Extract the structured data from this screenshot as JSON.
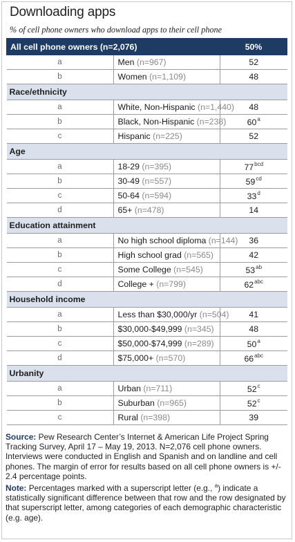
{
  "title": "Downloading apps",
  "subtitle": "% of cell phone owners who download apps to their cell phone",
  "header": {
    "label": "All cell phone owners (n=2,076)",
    "value": "50%"
  },
  "sections": [
    {
      "heading": "",
      "rows": [
        {
          "letter": "a",
          "label": "Men",
          "n": "(n=967)",
          "value": "52",
          "sup": ""
        },
        {
          "letter": "b",
          "label": "Women",
          "n": "(n=1,109)",
          "value": "48",
          "sup": ""
        }
      ]
    },
    {
      "heading": "Race/ethnicity",
      "rows": [
        {
          "letter": "a",
          "label": "White, Non-Hispanic",
          "n": "(n=1,440)",
          "value": "48",
          "sup": ""
        },
        {
          "letter": "b",
          "label": "Black, Non-Hispanic",
          "n": "(n=238)",
          "value": "60",
          "sup": "a"
        },
        {
          "letter": "c",
          "label": "Hispanic",
          "n": "(n=225)",
          "value": "52",
          "sup": ""
        }
      ]
    },
    {
      "heading": "Age",
      "rows": [
        {
          "letter": "a",
          "label": "18-29",
          "n": "(n=395)",
          "value": "77",
          "sup": "bcd"
        },
        {
          "letter": "b",
          "label": "30-49",
          "n": "(n=557)",
          "value": "59",
          "sup": "cd"
        },
        {
          "letter": "c",
          "label": "50-64",
          "n": "(n=594)",
          "value": "33",
          "sup": "d"
        },
        {
          "letter": "d",
          "label": "65+",
          "n": "(n=478)",
          "value": "14",
          "sup": ""
        }
      ]
    },
    {
      "heading": "Education attainment",
      "rows": [
        {
          "letter": "a",
          "label": "No high school diploma",
          "n": "(n=144)",
          "value": "36",
          "sup": ""
        },
        {
          "letter": "b",
          "label": "High school grad",
          "n": "(n=565)",
          "value": "42",
          "sup": ""
        },
        {
          "letter": "c",
          "label": "Some College",
          "n": "(n=545)",
          "value": "53",
          "sup": "ab"
        },
        {
          "letter": "d",
          "label": "College +",
          "n": "(n=799)",
          "value": "62",
          "sup": "abc"
        }
      ]
    },
    {
      "heading": "Household income",
      "rows": [
        {
          "letter": "a",
          "label": "Less than $30,000/yr",
          "n": "(n=504)",
          "value": "41",
          "sup": ""
        },
        {
          "letter": "b",
          "label": "$30,000-$49,999",
          "n": "(n=345)",
          "value": "48",
          "sup": ""
        },
        {
          "letter": "c",
          "label": "$50,000-$74,999",
          "n": "(n=289)",
          "value": "50",
          "sup": "a"
        },
        {
          "letter": "d",
          "label": "$75,000+",
          "n": "(n=570)",
          "value": "66",
          "sup": "abc"
        }
      ]
    },
    {
      "heading": "Urbanity",
      "rows": [
        {
          "letter": "a",
          "label": "Urban",
          "n": "(n=711)",
          "value": "52",
          "sup": "c"
        },
        {
          "letter": "b",
          "label": "Suburban",
          "n": "(n=965)",
          "value": "52",
          "sup": "c"
        },
        {
          "letter": "c",
          "label": "Rural",
          "n": "(n=398)",
          "value": "39",
          "sup": ""
        }
      ]
    }
  ],
  "source": {
    "label": "Source:",
    "text": "Pew Research Center’s Internet & American Life Project Spring Tracking Survey, April 17 – May 19, 2013. N=2,076 cell phone owners. Interviews were conducted in English and Spanish and on landline and cell phones.  The margin of error for results based on all cell phone owners is +/- 2.4 percentage points."
  },
  "note": {
    "label": "Note:",
    "before": "Percentages marked with a superscript letter (e.g., ",
    "sup": "a",
    "after": ") indicate a statistically significant difference between that row and the row designated by that superscript letter, among categories of each demographic characteristic (e.g. age)."
  }
}
